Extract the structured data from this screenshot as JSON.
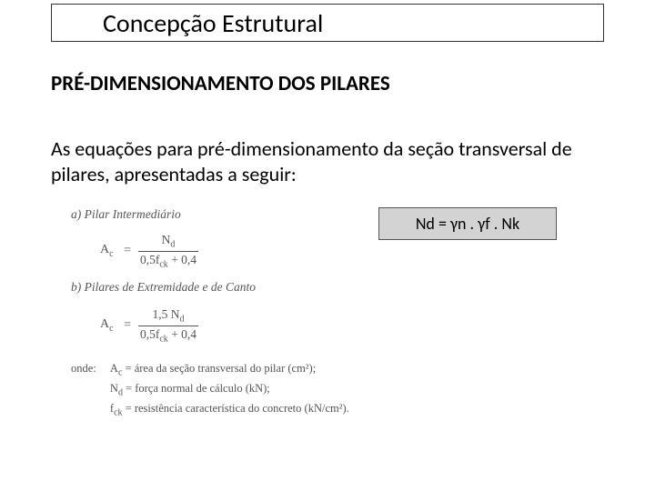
{
  "title": "Concepção Estrutural",
  "section_heading": "PRÉ-DIMENSIONAMENTO DOS PILARES",
  "body": "As equações para pré-dimensionamento da seção transversal de pilares, apresentadas a seguir:",
  "item_a": {
    "label": "a) Pilar Intermediário",
    "lhs": "A",
    "lhs_sub": "c",
    "num_text": "N",
    "num_sub": "d",
    "den_a": "0,5f",
    "den_sub": "ck",
    "den_b": " + 0,4"
  },
  "item_b": {
    "label": "b) Pilares de Extremidade e de Canto",
    "lhs": "A",
    "lhs_sub": "c",
    "num_pre": "1,5 N",
    "num_sub": "d",
    "den_a": "0,5f",
    "den_sub": "ck",
    "den_b": " + 0,4"
  },
  "where": {
    "label": "onde:",
    "line1_sym": "A",
    "line1_sub": "c",
    "line1_text": " = área da seção transversal do pilar (cm²);",
    "line2_sym": "N",
    "line2_sub": "d",
    "line2_text": " = força normal de cálculo (kN);",
    "line3_sym": "f",
    "line3_sub": "ck",
    "line3_text": " = resistência característica do concreto (kN/cm²)."
  },
  "callout": "Nd = γn . γf . Nk",
  "colors": {
    "callout_bg": "#d3d3d3",
    "callout_border": "#555555",
    "formula_text": "#555555",
    "title_border": "#333333"
  }
}
